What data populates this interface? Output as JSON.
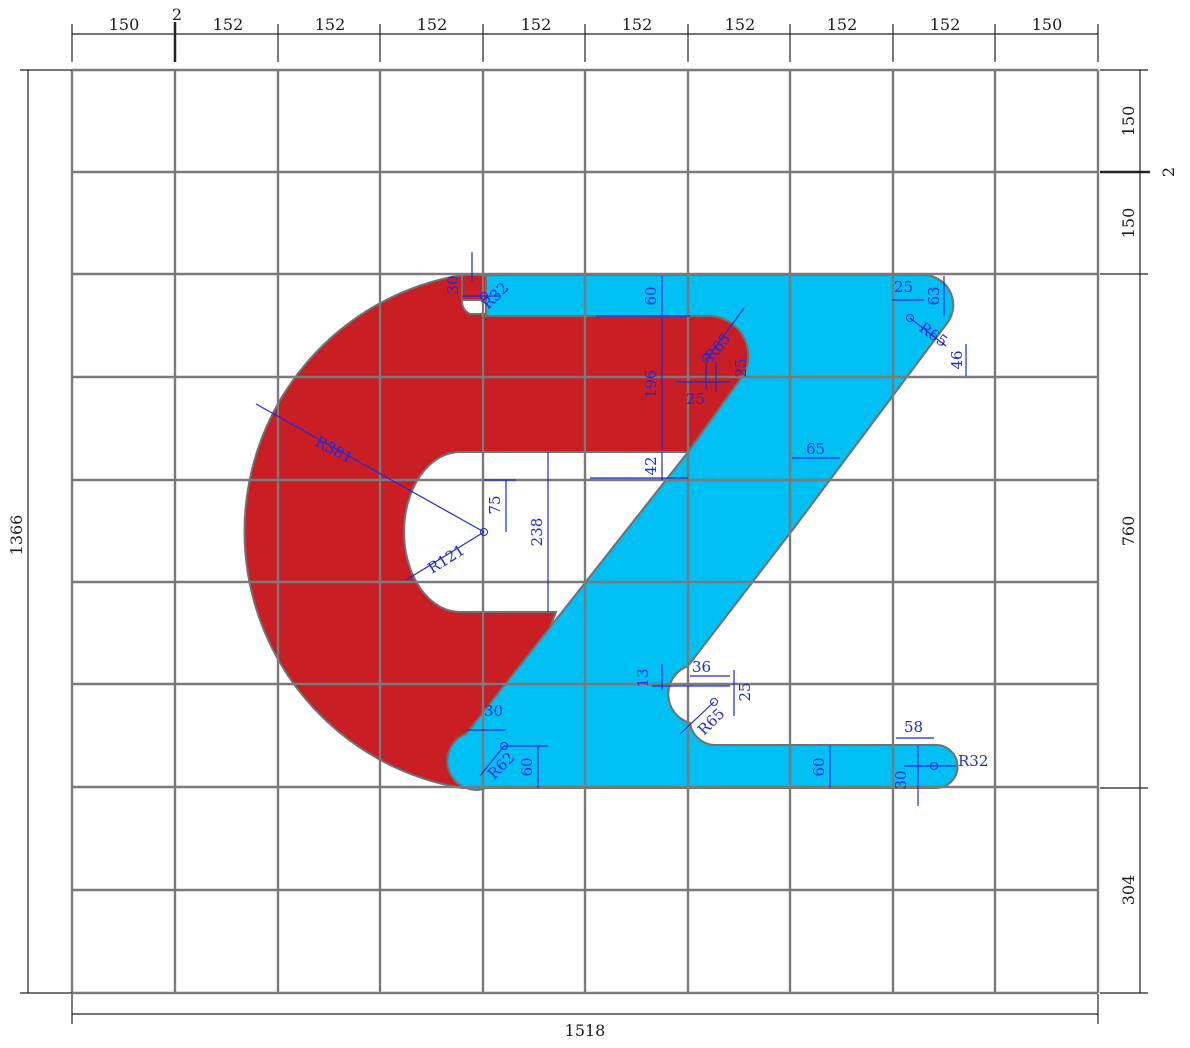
{
  "colors": {
    "red_part": "#c81e24",
    "blue_part": "#00bff3",
    "grid": "#7a7a7a",
    "dimension_lines": "#222222",
    "annotation": "#1a2be0"
  },
  "top_dimensions": [
    "150",
    "2",
    "152",
    "152",
    "152",
    "152",
    "152",
    "152",
    "152",
    "152",
    "150"
  ],
  "right_dimensions": [
    "150",
    "2",
    "150",
    "760",
    "304"
  ],
  "left_dimension": "1366",
  "bottom_dimension": "1518",
  "annotations": {
    "r32_top": "R32",
    "d30_top": "30",
    "d60_top": "60",
    "r65_top": "R65",
    "d196": "196",
    "d25_a": "25",
    "d25_b": "25",
    "d25_right": "25",
    "d63": "63",
    "r65_right": "R65",
    "d46": "46",
    "r381": "R381",
    "d65": "65",
    "d42": "42",
    "d75": "75",
    "d238": "238",
    "r121": "R121",
    "d13": "13",
    "d36": "36",
    "d25_c": "25",
    "r65_bottom": "R65",
    "d30_bottom": "30",
    "r62": "R62",
    "d60_left": "60",
    "d60_right": "60",
    "d58": "58",
    "d30_right": "30",
    "r32_right": "R32"
  }
}
